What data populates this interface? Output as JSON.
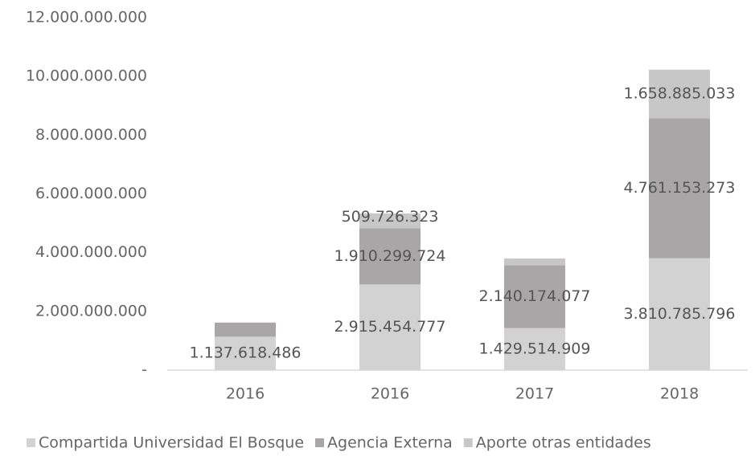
{
  "chart_data": {
    "type": "stacked_bar",
    "categories": [
      "2016",
      "2016",
      "2017",
      "2018"
    ],
    "series": [
      {
        "name": "Compartida Universidad El Bosque",
        "color": "#d3d2d2",
        "values": [
          1137618486,
          2915454777,
          1429514909,
          3810785796
        ],
        "value_labels": [
          "1.137.618.486",
          "2.915.454.777",
          "1.429.514.909",
          "3.810.785.796"
        ]
      },
      {
        "name": "Agencia Externa",
        "color": "#a8a6a6",
        "values": [
          480000000,
          1910299724,
          2140174077,
          4761153273
        ],
        "value_labels": [
          null,
          "1.910.299.724",
          "2.140.174.077",
          "4.761.153.273"
        ]
      },
      {
        "name": "Aporte otras entidades",
        "color": "#c8c7c7",
        "values": [
          null,
          509726323,
          230000000,
          1658885033
        ],
        "value_labels": [
          null,
          "509.726.323",
          null,
          "1.658.885.033"
        ]
      }
    ],
    "ylim": [
      0,
      12000000000
    ],
    "yticks": [
      {
        "value": 0,
        "label": "-"
      },
      {
        "value": 2000000000,
        "label": "2.000.000.000"
      },
      {
        "value": 4000000000,
        "label": "4.000.000.000"
      },
      {
        "value": 6000000000,
        "label": "6.000.000.000"
      },
      {
        "value": 8000000000,
        "label": "8.000.000.000"
      },
      {
        "value": 10000000000,
        "label": "10.000.000.000"
      },
      {
        "value": 12000000000,
        "label": "12.000.000.000"
      }
    ],
    "legend": "bottom"
  }
}
